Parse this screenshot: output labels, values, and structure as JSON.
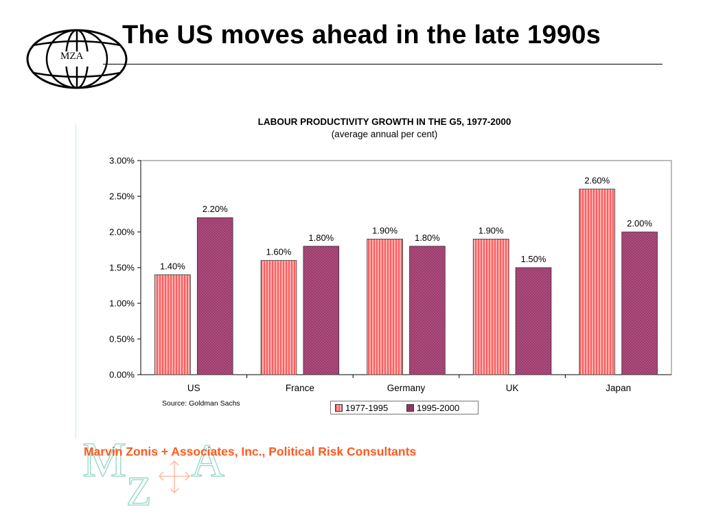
{
  "slide": {
    "title": "The US moves ahead in the late 1990s",
    "logo_text": "MZA",
    "footer": "Marvin Zonis + Associates, Inc., Political Risk Consultants",
    "watermark_letters": [
      "M",
      "Z",
      "A"
    ]
  },
  "chart_data": {
    "type": "bar",
    "title": "LABOUR PRODUCTIVITY GROWTH IN THE G5, 1977-2000",
    "subtitle": "(average annual per cent)",
    "categories": [
      "US",
      "France",
      "Germany",
      "UK",
      "Japan"
    ],
    "series": [
      {
        "name": "1977-1995",
        "values": [
          1.4,
          1.6,
          1.9,
          1.9,
          2.6
        ],
        "labels": [
          "1.40%",
          "1.60%",
          "1.90%",
          "1.90%",
          "2.60%"
        ],
        "color": "#ff8a8a"
      },
      {
        "name": "1995-2000",
        "values": [
          2.2,
          1.8,
          1.8,
          1.5,
          2.0
        ],
        "labels": [
          "2.20%",
          "1.80%",
          "1.80%",
          "1.50%",
          "2.00%"
        ],
        "color": "#993366"
      }
    ],
    "y_ticks": [
      0,
      0.5,
      1.0,
      1.5,
      2.0,
      2.5,
      3.0
    ],
    "y_tick_labels": [
      "0.00%",
      "0.50%",
      "1.00%",
      "1.50%",
      "2.00%",
      "2.50%",
      "3.00%"
    ],
    "ylim": [
      0,
      3.0
    ],
    "grid": false,
    "legend_position": "bottom",
    "source": "Source: Goldman Sachs"
  }
}
